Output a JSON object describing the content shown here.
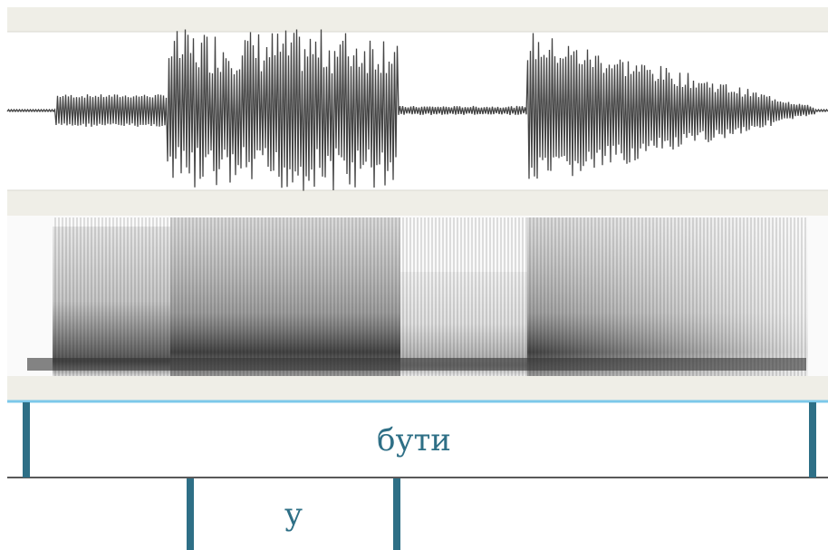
{
  "tiers": [
    {
      "intervals": [
        {
          "label": "бути"
        }
      ]
    },
    {
      "intervals": [
        {
          "label": "у"
        }
      ]
    }
  ]
}
